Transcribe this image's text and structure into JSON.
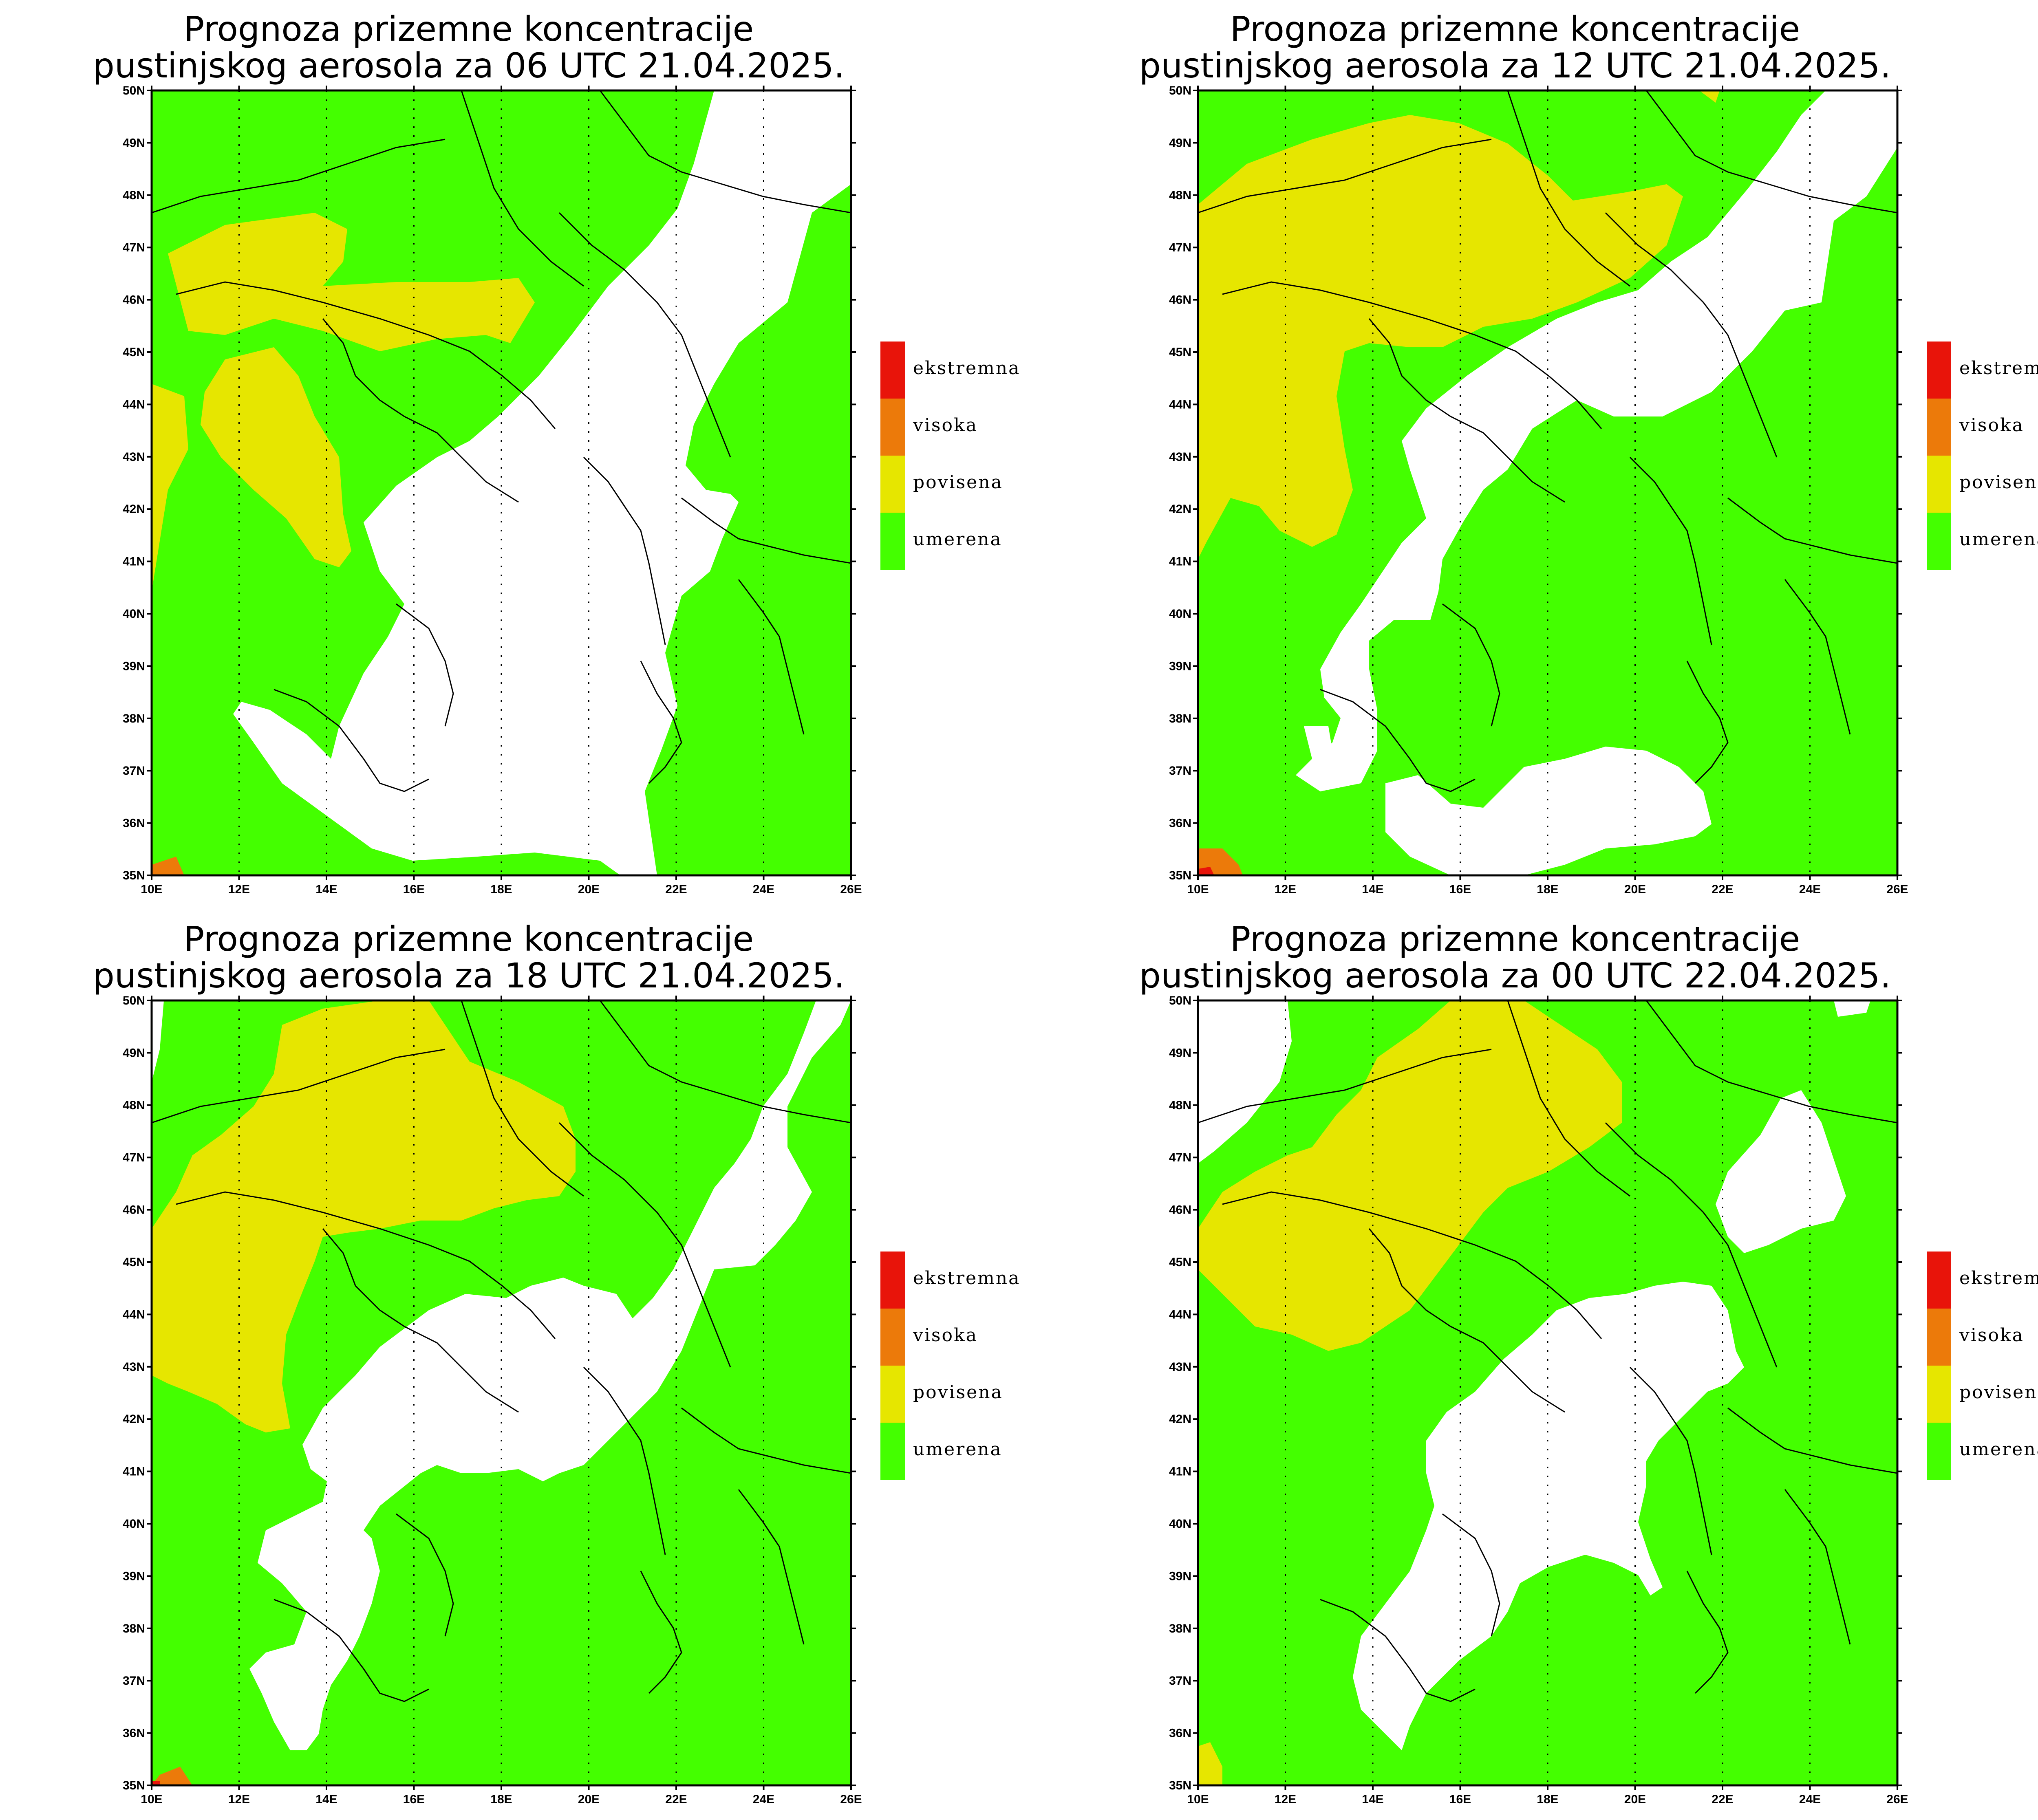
{
  "panels": [
    {
      "title_line1": "Prognoza prizemne koncentracije",
      "title_line2": "pustinjskog aerosola za 06 UTC 21.04.2025."
    },
    {
      "title_line1": "Prognoza prizemne koncentracije",
      "title_line2": "pustinjskog aerosola za 12 UTC 21.04.2025."
    },
    {
      "title_line1": "Prognoza prizemne koncentracije",
      "title_line2": "pustinjskog aerosola za 18 UTC 21.04.2025."
    },
    {
      "title_line1": "Prognoza prizemne koncentracije",
      "title_line2": "pustinjskog aerosola za 00 UTC 22.04.2025."
    }
  ],
  "axes": {
    "lat_labels": [
      "50N",
      "49N",
      "48N",
      "47N",
      "46N",
      "45N",
      "44N",
      "43N",
      "42N",
      "41N",
      "40N",
      "39N",
      "38N",
      "37N",
      "36N",
      "35N"
    ],
    "lon_labels": [
      "10E",
      "12E",
      "14E",
      "16E",
      "18E",
      "20E",
      "22E",
      "24E",
      "26E"
    ]
  },
  "legend": [
    {
      "label": "ekstremna",
      "color": "#e8140a"
    },
    {
      "label": "visoka",
      "color": "#ec7a0a"
    },
    {
      "label": "povisena",
      "color": "#e6e600"
    },
    {
      "label": "umerena",
      "color": "#44ff00"
    }
  ],
  "colors": {
    "umerena": "#44ff00",
    "povisena": "#e6e600",
    "visoka": "#ec7a0a",
    "ekstremna": "#e8140a",
    "clear": "#ffffff"
  }
}
